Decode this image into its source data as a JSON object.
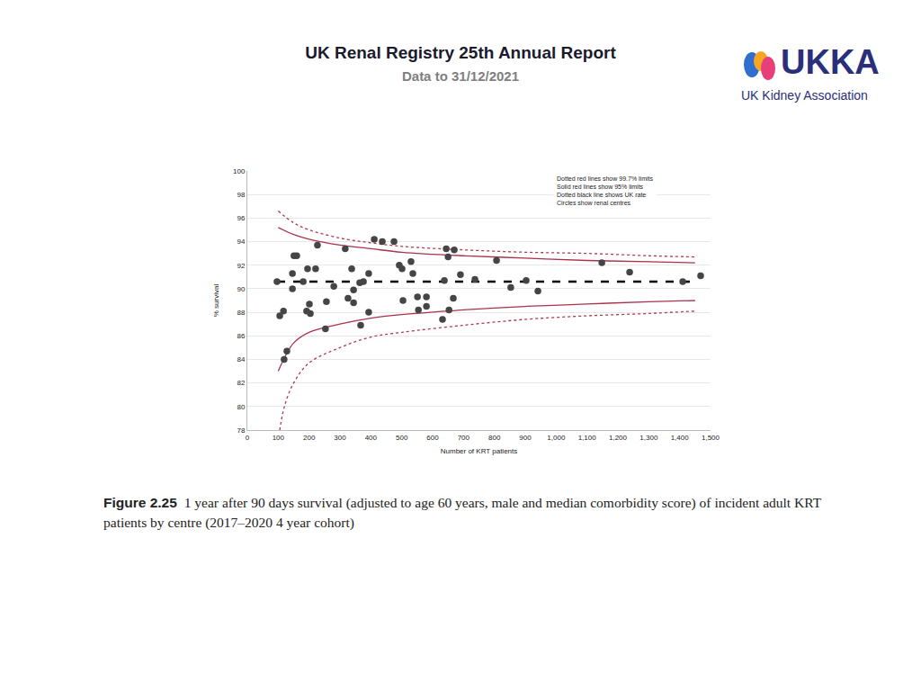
{
  "header": {
    "title": "UK Renal Registry 25th Annual Report",
    "subtitle": "Data to 31/12/2021"
  },
  "logo": {
    "text": "UKKA",
    "subtitle": "UK Kidney Association"
  },
  "caption": {
    "label": "Figure 2.25",
    "text": "1 year after 90 days survival (adjusted to age 60 years, male and median comorbidity score) of incident adult KRT patients by centre (2017–2020 4 year cohort)"
  },
  "chart_data": {
    "type": "scatter",
    "xlabel": "Number of KRT patients",
    "ylabel": "% survival",
    "xlim": [
      0,
      1500
    ],
    "ylim": [
      78,
      100
    ],
    "xticks": [
      0,
      100,
      200,
      300,
      400,
      500,
      600,
      700,
      800,
      900,
      {
        "value": 1000,
        "label": "1,000"
      },
      {
        "value": 1100,
        "label": "1,100"
      },
      {
        "value": 1200,
        "label": "1,200"
      },
      {
        "value": 1300,
        "label": "1,300"
      },
      {
        "value": 1400,
        "label": "1,400"
      },
      {
        "value": 1500,
        "label": "1,500"
      }
    ],
    "yticks": [
      78,
      80,
      82,
      84,
      86,
      88,
      90,
      92,
      94,
      96,
      98,
      100
    ],
    "grid": true,
    "annotations": [
      "Dotted red lines show 99.7% limits",
      "Solid red lines show 95% limits",
      "Dotted black line shows UK rate",
      "Circles show renal centres"
    ],
    "series": [
      {
        "type": "line",
        "line_style": "dot",
        "color": "#b0394a",
        "x": [
          100,
          150,
          200,
          300,
          400,
          500,
          700,
          900,
          1100,
          1300,
          1450
        ],
        "values": [
          96.6,
          95.6,
          95.0,
          94.3,
          93.9,
          93.6,
          93.3,
          93.1,
          93.0,
          92.8,
          92.7
        ]
      },
      {
        "type": "line",
        "line_style": "solid",
        "color": "#a8334a",
        "x": [
          100,
          150,
          200,
          300,
          400,
          500,
          700,
          900,
          1100,
          1300,
          1450
        ],
        "values": [
          95.2,
          94.6,
          94.2,
          93.7,
          93.4,
          93.1,
          92.8,
          92.6,
          92.4,
          92.3,
          92.2
        ]
      },
      {
        "type": "line",
        "line_style": "solid",
        "color": "#a8334a",
        "x": [
          100,
          150,
          200,
          300,
          400,
          500,
          700,
          900,
          1100,
          1300,
          1450
        ],
        "values": [
          83.0,
          85.4,
          86.3,
          87.0,
          87.5,
          87.8,
          88.2,
          88.5,
          88.7,
          88.9,
          89.0
        ]
      },
      {
        "type": "line",
        "line_style": "dot",
        "color": "#b0394a",
        "x": [
          105,
          120,
          150,
          200,
          300,
          400,
          500,
          700,
          900,
          1100,
          1300,
          1450
        ],
        "values": [
          78.0,
          80.0,
          82.0,
          83.7,
          85.0,
          85.9,
          86.3,
          86.9,
          87.4,
          87.7,
          87.9,
          88.1
        ]
      },
      {
        "type": "line",
        "line_style": "dash",
        "color": "#000000",
        "x": [
          96,
          1440
        ],
        "values": [
          90.6,
          90.6
        ]
      },
      {
        "type": "scatter",
        "marker": "circle",
        "color": "#454545",
        "x": [
          96,
          105,
          117,
          119,
          128,
          146,
          146,
          151,
          160,
          181,
          195,
          192,
          201,
          204,
          221,
          227,
          253,
          256,
          280,
          317,
          326,
          338,
          344,
          344,
          364,
          367,
          376,
          393,
          393,
          411,
          437,
          475,
          492,
          501,
          504,
          530,
          536,
          551,
          554,
          580,
          580,
          632,
          638,
          644,
          650,
          653,
          670,
          667,
          690,
          737,
          807,
          853,
          903,
          941,
          1148,
          1238,
          1410,
          1468
        ],
        "values": [
          90.6,
          87.7,
          88.1,
          84.0,
          84.7,
          91.3,
          90.0,
          92.8,
          92.8,
          90.6,
          91.7,
          88.1,
          88.7,
          87.9,
          91.7,
          93.7,
          86.6,
          88.9,
          90.2,
          93.4,
          89.2,
          91.7,
          89.9,
          88.8,
          90.5,
          86.9,
          90.6,
          91.3,
          88.0,
          94.2,
          94.0,
          94.0,
          92.0,
          91.7,
          89.0,
          92.3,
          91.3,
          89.3,
          88.2,
          89.3,
          88.5,
          87.4,
          90.7,
          93.4,
          92.7,
          88.2,
          93.3,
          89.2,
          91.2,
          90.8,
          92.4,
          90.1,
          90.7,
          89.8,
          92.2,
          91.4,
          90.6,
          91.1
        ]
      }
    ]
  }
}
